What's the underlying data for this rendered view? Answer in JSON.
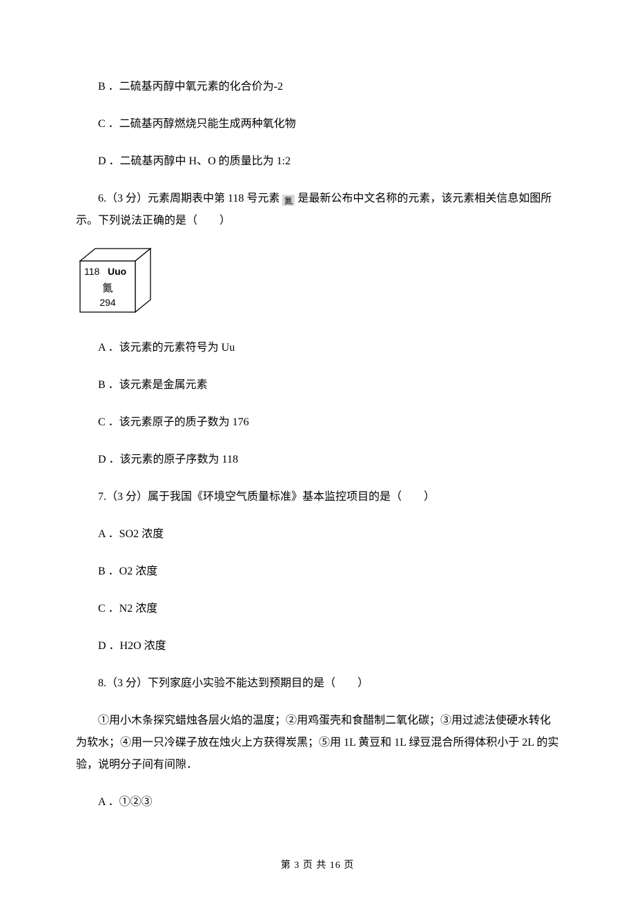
{
  "lines": {
    "opt_b_prev": "B ．二硫基丙醇中氧元素的化合价为-2",
    "opt_c_prev": "C ．二硫基丙醇燃烧只能生成两种氧化物",
    "opt_d_prev": "D ．二硫基丙醇中 H、O 的质量比为 1:2",
    "q6_a": "6.（3 分）元素周期表中第 118 号元素 ",
    "q6_b": " 是最新公布中文名称的元素，该元素相关信息如图所示。下列说法正确的是（　　）",
    "q6_opt_a": "A ．该元素的元素符号为 Uu",
    "q6_opt_b": "B ．该元素是金属元素",
    "q6_opt_c": "C ．该元素原子的质子数为 176",
    "q6_opt_d": "D ．该元素的原子序数为 118",
    "q7": "7.（3 分）属于我国《环境空气质量标准》基本监控项目的是（　　）",
    "q7_opt_a": "A ．SO2 浓度",
    "q7_opt_b": "B ．O2 浓度",
    "q7_opt_c": "C ．N2 浓度",
    "q7_opt_d": "D ．H2O 浓度",
    "q8": "8.（3 分）下列家庭小实验不能达到预期目的是（　　）",
    "q8_body": "①用小木条探究蜡烛各层火焰的温度；②用鸡蛋壳和食醋制二氧化碳；③用过滤法使硬水转化为软水；④用一只冷碟子放在烛火上方获得炭黑；⑤用 1L 黄豆和 1L 绿豆混合所得体积小于 2L 的实验，说明分子间有间隙．",
    "q8_opt_a": "A ．①②③"
  },
  "element_box": {
    "num": "118",
    "sym": "Uuo",
    "cn": "鿫",
    "mass": "294",
    "stroke": "#000000",
    "fill": "#ffffff",
    "font_size_main": 14,
    "font_size_cn": 15,
    "width": 120,
    "height": 100
  },
  "inline_icon": {
    "bg": "#d0d0d0",
    "fg": "#000000"
  },
  "footer": "第 3 页 共 16 页"
}
